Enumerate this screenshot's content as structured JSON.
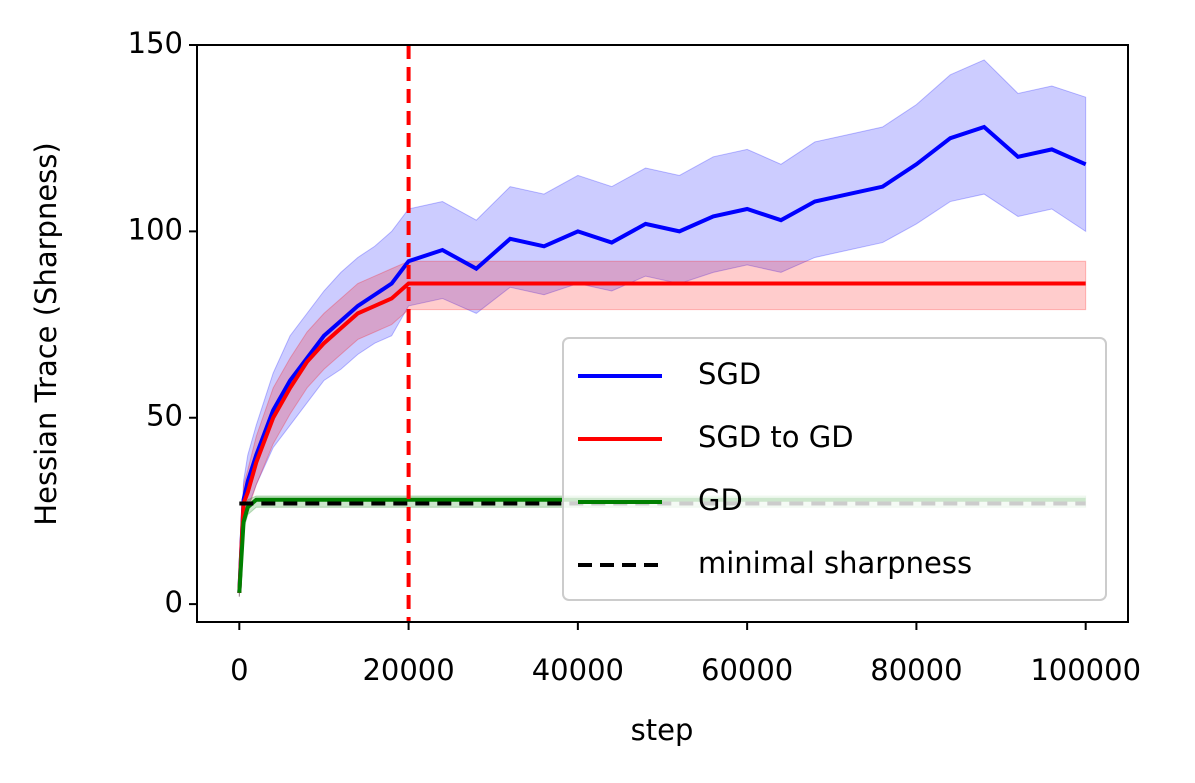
{
  "chart_data": {
    "type": "line",
    "xlabel": "step",
    "ylabel": "Hessian Trace (Sharpness)",
    "xlim": [
      -5000,
      105000
    ],
    "ylim": [
      -4.8,
      150
    ],
    "xticks": [
      0,
      20000,
      40000,
      60000,
      80000,
      100000
    ],
    "yticks": [
      0,
      50,
      100,
      150
    ],
    "vlines": [
      {
        "value": 20000,
        "color": "#ff0000"
      }
    ],
    "legend": "lower right",
    "series": [
      {
        "name": "SGD",
        "color": "#0000ff",
        "x": [
          0,
          500,
          1000,
          2000,
          4000,
          6000,
          8000,
          10000,
          12000,
          14000,
          16000,
          18000,
          20000,
          24000,
          28000,
          32000,
          36000,
          40000,
          44000,
          48000,
          52000,
          56000,
          60000,
          64000,
          68000,
          72000,
          76000,
          80000,
          84000,
          88000,
          92000,
          96000,
          100000
        ],
        "values": [
          3,
          28,
          33,
          40,
          52,
          60,
          66,
          72,
          76,
          80,
          83,
          86,
          92,
          95,
          90,
          98,
          96,
          100,
          97,
          102,
          100,
          104,
          106,
          103,
          108,
          110,
          112,
          118,
          125,
          128,
          120,
          122,
          118
        ],
        "lower": [
          2,
          22,
          26,
          32,
          42,
          48,
          54,
          60,
          63,
          67,
          70,
          72,
          80,
          82,
          78,
          85,
          83,
          86,
          84,
          88,
          86,
          89,
          91,
          89,
          93,
          95,
          97,
          102,
          108,
          110,
          104,
          106,
          100
        ],
        "upper": [
          4,
          33,
          40,
          48,
          62,
          72,
          78,
          84,
          89,
          93,
          96,
          100,
          106,
          108,
          103,
          112,
          110,
          115,
          112,
          117,
          115,
          120,
          122,
          118,
          124,
          126,
          128,
          134,
          142,
          146,
          137,
          139,
          136
        ]
      },
      {
        "name": "SGD to GD",
        "color": "#ff0000",
        "x": [
          0,
          500,
          1000,
          2000,
          4000,
          6000,
          8000,
          10000,
          12000,
          14000,
          16000,
          18000,
          20000,
          100000
        ],
        "values": [
          3,
          27,
          30,
          38,
          50,
          58,
          65,
          70,
          74,
          78,
          80,
          82,
          86,
          86
        ],
        "lower": [
          2,
          22,
          25,
          32,
          43,
          51,
          58,
          63,
          67,
          71,
          73,
          75,
          79,
          79
        ],
        "upper": [
          4,
          32,
          36,
          45,
          58,
          66,
          73,
          78,
          82,
          86,
          88,
          90,
          92,
          92
        ]
      },
      {
        "name": "GD",
        "color": "#008000",
        "x": [
          0,
          500,
          1000,
          2000,
          100000
        ],
        "values": [
          3,
          22,
          26,
          28,
          28
        ],
        "lower": [
          2,
          20,
          24,
          26,
          26
        ],
        "upper": [
          4,
          24,
          28,
          29,
          29
        ]
      },
      {
        "name": "minimal sharpness",
        "color": "#000000",
        "dashed": true,
        "x": [
          0,
          100000
        ],
        "values": [
          27,
          27
        ]
      }
    ]
  }
}
